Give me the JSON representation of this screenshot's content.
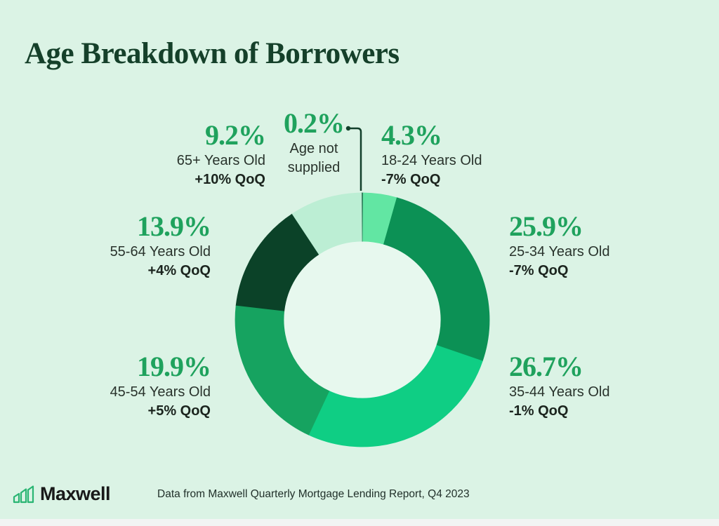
{
  "page": {
    "title": "Age Breakdown of Borrowers",
    "background_color": "#dbf3e5",
    "title_color": "#15402a"
  },
  "chart_data": {
    "type": "pie",
    "donut": true,
    "title": "Age Breakdown of Borrowers",
    "legend_position": "around-chart",
    "hole_color": "#e7f8ee",
    "accent_green": "#1fa25d",
    "leader_color": "#123f2a",
    "segments": [
      {
        "label": "Age not supplied",
        "value": 0.2,
        "pct": "0.2%",
        "qoq": null,
        "color": "#145c3e"
      },
      {
        "label": "18-24 Years Old",
        "value": 4.3,
        "pct": "4.3%",
        "qoq": "-7% QoQ",
        "color": "#62e6a3"
      },
      {
        "label": "25-34 Years Old",
        "value": 25.9,
        "pct": "25.9%",
        "qoq": "-7% QoQ",
        "color": "#0c9155"
      },
      {
        "label": "35-44 Years Old",
        "value": 26.7,
        "pct": "26.7%",
        "qoq": "-1% QoQ",
        "color": "#0fce84"
      },
      {
        "label": "45-54 Years Old",
        "value": 19.9,
        "pct": "19.9%",
        "qoq": "+5% QoQ",
        "color": "#16a360"
      },
      {
        "label": "55-64 Years Old",
        "value": 13.9,
        "pct": "13.9%",
        "qoq": "+4% QoQ",
        "color": "#0b4228"
      },
      {
        "label": "65+ Years Old",
        "value": 9.2,
        "pct": "9.2%",
        "qoq": "+10% QoQ",
        "color": "#bceed4"
      }
    ]
  },
  "footer": {
    "brand": "Maxwell",
    "caption": "Data from Maxwell Quarterly Mortgage Lending Report, Q4 2023",
    "logo_color": "#2ab573"
  }
}
